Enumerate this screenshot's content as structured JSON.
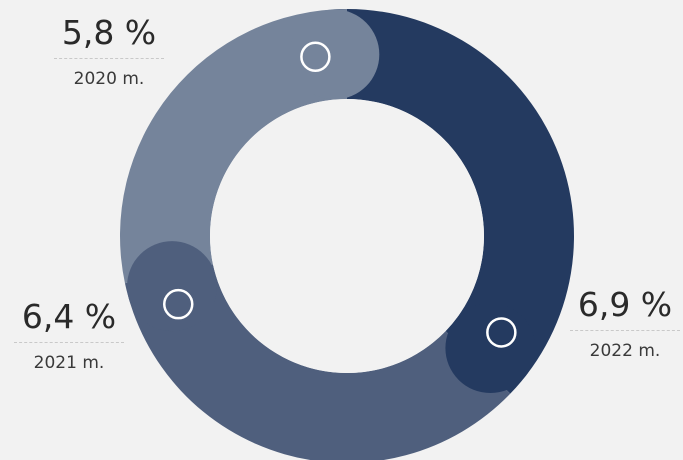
{
  "chart_data": {
    "type": "pie",
    "series": [
      {
        "label": "2020 m.",
        "value": 5.8,
        "value_text": "5,8 %",
        "color": "#75849b"
      },
      {
        "label": "2021 m.",
        "value": 6.4,
        "value_text": "6,4 %",
        "color": "#4f5f7d"
      },
      {
        "label": "2022 m.",
        "value": 6.9,
        "value_text": "6,9 %",
        "color": "#243a60"
      }
    ],
    "legend": "none",
    "background": "#f2f2f2"
  }
}
